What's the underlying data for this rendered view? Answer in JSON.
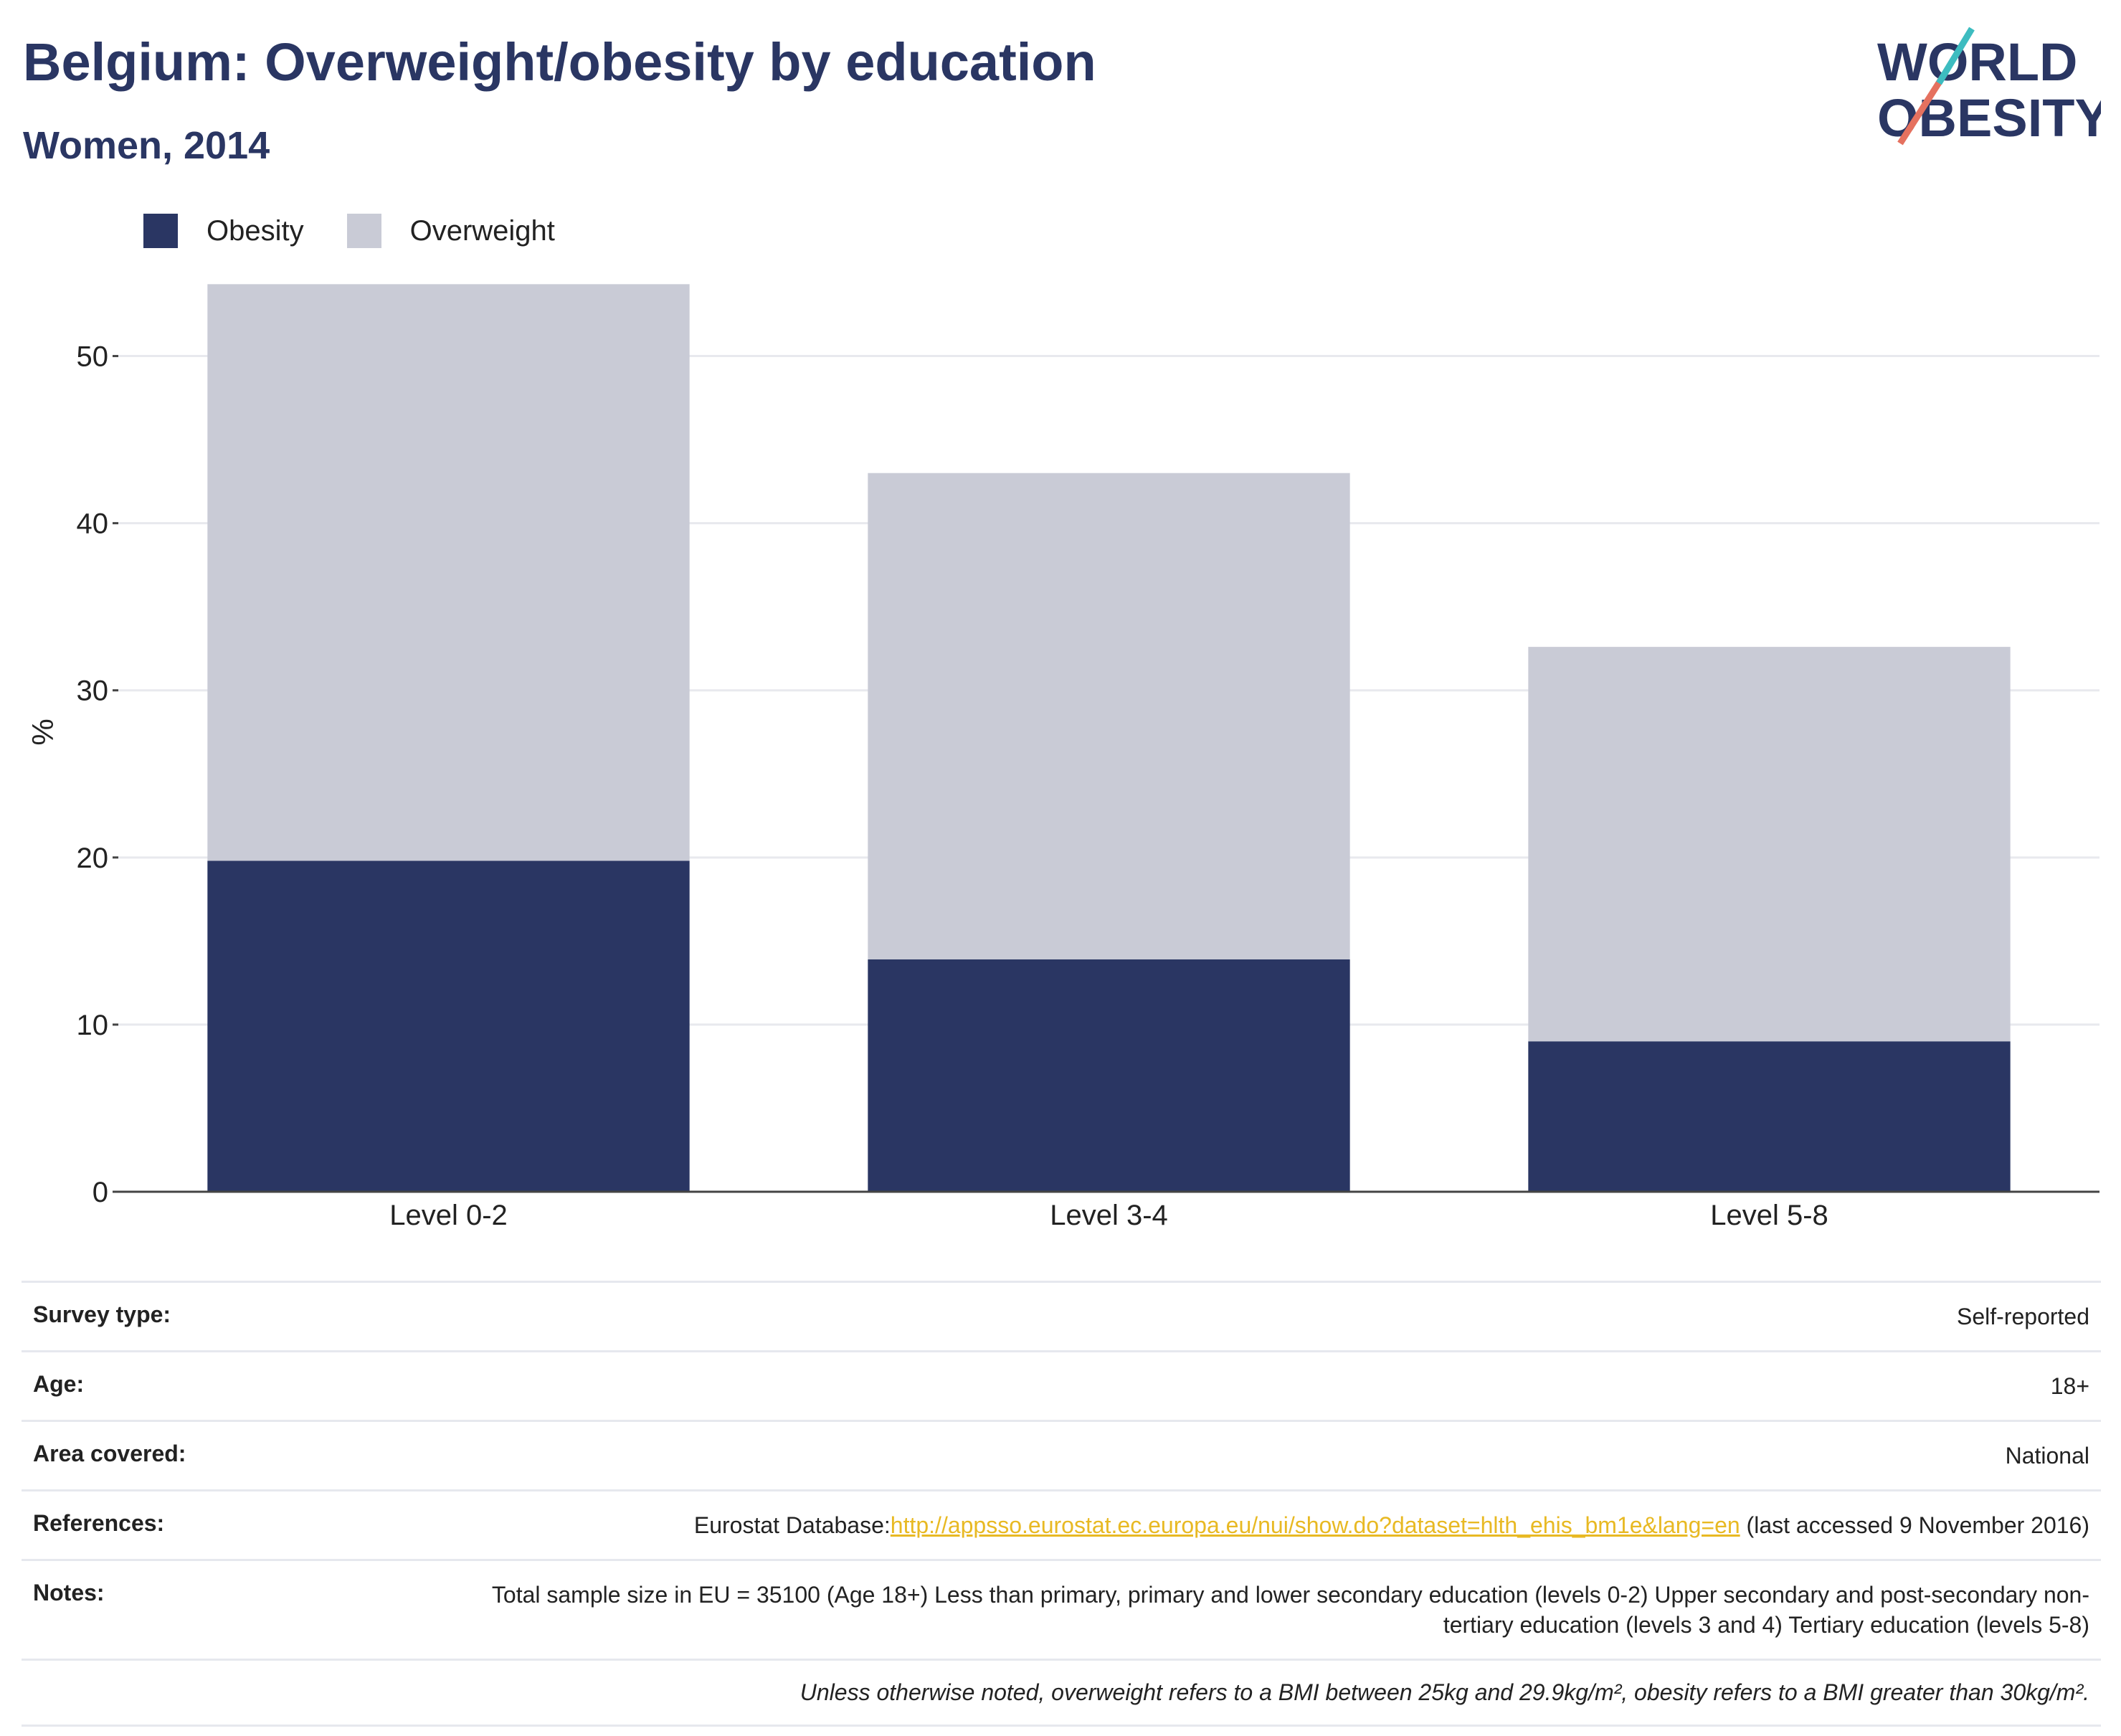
{
  "header": {
    "title": "Belgium: Overweight/obesity by education",
    "subtitle": "Women, 2014"
  },
  "logo": {
    "line1": "WORLD",
    "line2": "OBESITY"
  },
  "colors": {
    "obesity": "#2a3663",
    "overweight": "#c9cbd6",
    "accent_teal": "#3dbcc0",
    "accent_coral": "#e5715f",
    "link": "#e8b923"
  },
  "chart_data": {
    "type": "bar",
    "stacked": true,
    "categories": [
      "Level 0-2",
      "Level 3-4",
      "Level 5-8"
    ],
    "series": [
      {
        "name": "Obesity",
        "values": [
          19.8,
          13.9,
          9.0
        ]
      },
      {
        "name": "Overweight",
        "values": [
          34.5,
          29.1,
          23.6
        ]
      }
    ],
    "ylabel": "%",
    "ylim": [
      0,
      55
    ],
    "yticks": [
      0,
      10,
      20,
      30,
      40,
      50
    ],
    "grid": true,
    "legend": "top-left"
  },
  "info": {
    "survey_type_label": "Survey type:",
    "survey_type_value": "Self-reported",
    "age_label": "Age:",
    "age_value": "18+",
    "area_label": "Area covered:",
    "area_value": "National",
    "references_label": "References:",
    "references_prefix": "Eurostat Database:",
    "references_link": "http://appsso.eurostat.ec.europa.eu/nui/show.do?dataset=hlth_ehis_bm1e&lang=en",
    "references_suffix": " (last accessed 9 November 2016)",
    "notes_label": "Notes:",
    "notes_value": "Total sample size in EU = 35100 (Age 18+) Less than primary, primary and lower secondary education (levels 0-2) Upper secondary and post-secondary non-tertiary education (levels 3 and 4) Tertiary education (levels 5-8)",
    "footnote": "Unless otherwise noted, overweight refers to a BMI between 25kg and 29.9kg/m², obesity refers to a BMI greater than 30kg/m²."
  }
}
